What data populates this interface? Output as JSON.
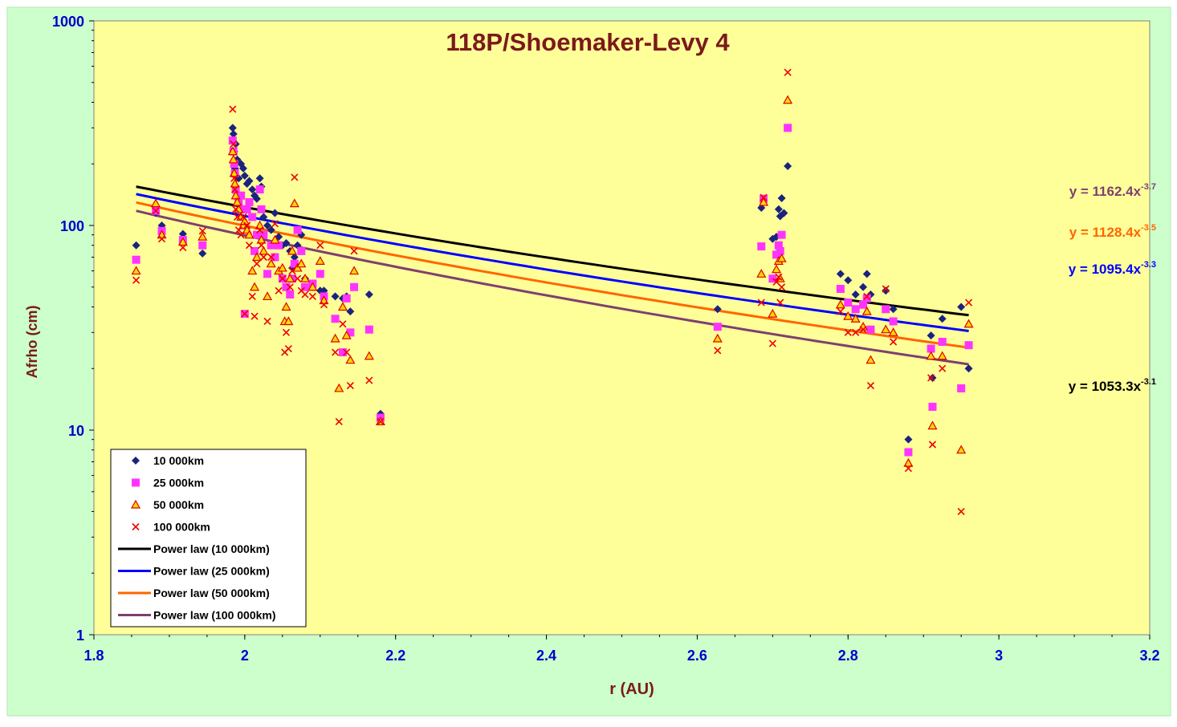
{
  "chart_data": {
    "type": "scatter",
    "title": "118P/Shoemaker-Levy 4",
    "xlabel": "r (AU)",
    "ylabel": "Afrho (cm)",
    "xlim": [
      1.8,
      3.2
    ],
    "ylim": [
      1,
      1000
    ],
    "yscale": "log",
    "x_ticks": [
      "1.8",
      "2",
      "2.2",
      "2.4",
      "2.6",
      "2.8",
      "3",
      "3.2"
    ],
    "y_ticks": [
      "1",
      "10",
      "100",
      "1000"
    ],
    "grid": false,
    "legend_position": "bottom-left",
    "colors": {
      "outer_background": "#ccffcc",
      "plot_background": "#ffff99",
      "title": "#7a1a1a",
      "axis_label": "#7a1a1a",
      "tick_label": "#0000cc",
      "s10k": "#1a237e",
      "s25k": "#ff33ff",
      "s50k_edge": "#dd0000",
      "s50k_fill": "#ffd700",
      "s100k": "#ee0000",
      "fit10k": "#000000",
      "fit25k": "#0000ff",
      "fit50k": "#ff6600",
      "fit100k": "#7f3f6f"
    },
    "series": [
      {
        "name": "10 000km",
        "marker": "diamond",
        "points": [
          [
            1.856,
            80
          ],
          [
            1.882,
            115
          ],
          [
            1.89,
            100
          ],
          [
            1.918,
            91
          ],
          [
            1.944,
            73
          ],
          [
            1.984,
            300
          ],
          [
            1.985,
            280
          ],
          [
            1.986,
            230
          ],
          [
            1.987,
            190
          ],
          [
            1.988,
            250
          ],
          [
            1.99,
            210
          ],
          [
            1.992,
            170
          ],
          [
            1.995,
            200
          ],
          [
            1.998,
            190
          ],
          [
            2.0,
            175
          ],
          [
            2.003,
            160
          ],
          [
            2.006,
            165
          ],
          [
            2.01,
            150
          ],
          [
            2.013,
            140
          ],
          [
            2.016,
            135
          ],
          [
            2.02,
            170
          ],
          [
            2.022,
            155
          ],
          [
            2.025,
            110
          ],
          [
            2.03,
            100
          ],
          [
            2.035,
            95
          ],
          [
            2.04,
            115
          ],
          [
            2.045,
            88
          ],
          [
            2.05,
            80
          ],
          [
            2.055,
            82
          ],
          [
            2.06,
            75
          ],
          [
            2.063,
            62
          ],
          [
            2.066,
            70
          ],
          [
            2.07,
            80
          ],
          [
            2.075,
            90
          ],
          [
            2.08,
            55
          ],
          [
            2.09,
            50
          ],
          [
            2.1,
            48
          ],
          [
            2.105,
            48
          ],
          [
            2.12,
            45
          ],
          [
            2.13,
            44
          ],
          [
            2.135,
            45
          ],
          [
            2.14,
            38
          ],
          [
            2.165,
            46
          ],
          [
            2.18,
            12
          ],
          [
            2.627,
            39
          ],
          [
            2.685,
            122
          ],
          [
            2.688,
            135
          ],
          [
            2.7,
            86
          ],
          [
            2.705,
            88
          ],
          [
            2.708,
            120
          ],
          [
            2.71,
            111
          ],
          [
            2.712,
            136
          ],
          [
            2.715,
            115
          ],
          [
            2.72,
            195
          ],
          [
            2.79,
            58
          ],
          [
            2.8,
            54
          ],
          [
            2.81,
            46
          ],
          [
            2.82,
            50
          ],
          [
            2.825,
            58
          ],
          [
            2.83,
            46
          ],
          [
            2.85,
            48
          ],
          [
            2.86,
            39
          ],
          [
            2.88,
            9
          ],
          [
            2.91,
            29
          ],
          [
            2.912,
            18
          ],
          [
            2.925,
            35
          ],
          [
            2.95,
            40
          ],
          [
            2.96,
            20
          ]
        ]
      },
      {
        "name": "25 000km",
        "marker": "square",
        "points": [
          [
            1.856,
            68
          ],
          [
            1.882,
            118
          ],
          [
            1.89,
            94
          ],
          [
            1.918,
            85
          ],
          [
            1.944,
            80
          ],
          [
            1.984,
            260
          ],
          [
            1.985,
            230
          ],
          [
            1.986,
            200
          ],
          [
            1.987,
            180
          ],
          [
            1.988,
            150
          ],
          [
            1.99,
            140
          ],
          [
            1.992,
            130
          ],
          [
            1.995,
            140
          ],
          [
            1.998,
            120
          ],
          [
            2.0,
            37
          ],
          [
            2.003,
            120
          ],
          [
            2.006,
            130
          ],
          [
            2.01,
            110
          ],
          [
            2.013,
            75
          ],
          [
            2.016,
            90
          ],
          [
            2.02,
            150
          ],
          [
            2.022,
            120
          ],
          [
            2.025,
            90
          ],
          [
            2.03,
            58
          ],
          [
            2.035,
            80
          ],
          [
            2.04,
            70
          ],
          [
            2.045,
            80
          ],
          [
            2.05,
            55
          ],
          [
            2.055,
            50
          ],
          [
            2.06,
            46
          ],
          [
            2.063,
            55
          ],
          [
            2.066,
            65
          ],
          [
            2.07,
            95
          ],
          [
            2.075,
            75
          ],
          [
            2.08,
            50
          ],
          [
            2.09,
            52
          ],
          [
            2.1,
            58
          ],
          [
            2.105,
            45
          ],
          [
            2.12,
            35
          ],
          [
            2.13,
            24
          ],
          [
            2.135,
            44
          ],
          [
            2.14,
            30
          ],
          [
            2.145,
            50
          ],
          [
            2.165,
            31
          ],
          [
            2.18,
            11.5
          ],
          [
            2.627,
            32
          ],
          [
            2.685,
            79
          ],
          [
            2.688,
            135
          ],
          [
            2.7,
            55
          ],
          [
            2.705,
            72
          ],
          [
            2.708,
            80
          ],
          [
            2.71,
            75
          ],
          [
            2.712,
            90
          ],
          [
            2.72,
            300
          ],
          [
            2.79,
            49
          ],
          [
            2.8,
            42
          ],
          [
            2.81,
            39
          ],
          [
            2.82,
            41
          ],
          [
            2.825,
            44
          ],
          [
            2.83,
            31
          ],
          [
            2.85,
            39
          ],
          [
            2.86,
            34
          ],
          [
            2.88,
            7.8
          ],
          [
            2.91,
            25
          ],
          [
            2.912,
            13
          ],
          [
            2.925,
            27
          ],
          [
            2.95,
            16
          ],
          [
            2.96,
            26
          ]
        ]
      },
      {
        "name": "50 000km",
        "marker": "triangle",
        "points": [
          [
            1.856,
            60
          ],
          [
            1.882,
            128
          ],
          [
            1.89,
            90
          ],
          [
            1.918,
            83
          ],
          [
            1.944,
            88
          ],
          [
            1.984,
            230
          ],
          [
            1.985,
            210
          ],
          [
            1.986,
            180
          ],
          [
            1.987,
            160
          ],
          [
            1.988,
            140
          ],
          [
            1.99,
            130
          ],
          [
            1.992,
            120
          ],
          [
            1.995,
            110
          ],
          [
            1.998,
            100
          ],
          [
            2.0,
            105
          ],
          [
            2.003,
            95
          ],
          [
            2.006,
            90
          ],
          [
            2.01,
            60
          ],
          [
            2.013,
            50
          ],
          [
            2.016,
            70
          ],
          [
            2.02,
            100
          ],
          [
            2.022,
            85
          ],
          [
            2.025,
            75
          ],
          [
            2.03,
            45
          ],
          [
            2.035,
            65
          ],
          [
            2.04,
            85
          ],
          [
            2.045,
            60
          ],
          [
            2.05,
            62
          ],
          [
            2.053,
            34
          ],
          [
            2.055,
            40
          ],
          [
            2.058,
            34
          ],
          [
            2.06,
            55
          ],
          [
            2.063,
            75
          ],
          [
            2.066,
            128
          ],
          [
            2.07,
            62
          ],
          [
            2.075,
            65
          ],
          [
            2.08,
            55
          ],
          [
            2.09,
            50
          ],
          [
            2.1,
            67
          ],
          [
            2.105,
            43
          ],
          [
            2.12,
            28
          ],
          [
            2.125,
            16
          ],
          [
            2.13,
            40
          ],
          [
            2.135,
            29
          ],
          [
            2.14,
            22
          ],
          [
            2.145,
            60
          ],
          [
            2.165,
            23
          ],
          [
            2.18,
            11
          ],
          [
            2.627,
            28
          ],
          [
            2.685,
            58
          ],
          [
            2.688,
            130
          ],
          [
            2.7,
            37
          ],
          [
            2.705,
            61
          ],
          [
            2.708,
            67
          ],
          [
            2.71,
            55
          ],
          [
            2.712,
            69
          ],
          [
            2.72,
            410
          ],
          [
            2.79,
            41
          ],
          [
            2.8,
            36
          ],
          [
            2.81,
            35
          ],
          [
            2.82,
            32
          ],
          [
            2.825,
            38
          ],
          [
            2.83,
            22
          ],
          [
            2.85,
            31
          ],
          [
            2.86,
            30
          ],
          [
            2.88,
            6.9
          ],
          [
            2.91,
            23
          ],
          [
            2.912,
            10.5
          ],
          [
            2.925,
            23
          ],
          [
            2.95,
            8
          ],
          [
            2.96,
            33
          ]
        ]
      },
      {
        "name": "100 000km",
        "marker": "x",
        "points": [
          [
            1.856,
            54
          ],
          [
            1.882,
            118
          ],
          [
            1.89,
            86
          ],
          [
            1.918,
            78
          ],
          [
            1.944,
            94
          ],
          [
            1.984,
            370
          ],
          [
            1.985,
            250
          ],
          [
            1.986,
            170
          ],
          [
            1.987,
            150
          ],
          [
            1.988,
            120
          ],
          [
            1.99,
            110
          ],
          [
            1.992,
            95
          ],
          [
            1.995,
            90
          ],
          [
            1.998,
            110
          ],
          [
            2.0,
            37
          ],
          [
            2.003,
            100
          ],
          [
            2.006,
            80
          ],
          [
            2.01,
            45
          ],
          [
            2.013,
            36
          ],
          [
            2.016,
            65
          ],
          [
            2.02,
            95
          ],
          [
            2.022,
            80
          ],
          [
            2.025,
            70
          ],
          [
            2.03,
            34
          ],
          [
            2.035,
            70
          ],
          [
            2.04,
            102
          ],
          [
            2.045,
            48
          ],
          [
            2.05,
            55
          ],
          [
            2.053,
            24
          ],
          [
            2.055,
            30
          ],
          [
            2.058,
            25
          ],
          [
            2.06,
            50
          ],
          [
            2.063,
            60
          ],
          [
            2.066,
            172
          ],
          [
            2.07,
            55
          ],
          [
            2.075,
            48
          ],
          [
            2.08,
            46
          ],
          [
            2.09,
            45
          ],
          [
            2.1,
            80
          ],
          [
            2.105,
            41
          ],
          [
            2.12,
            24
          ],
          [
            2.125,
            11
          ],
          [
            2.13,
            33
          ],
          [
            2.135,
            24
          ],
          [
            2.14,
            16.5
          ],
          [
            2.145,
            75
          ],
          [
            2.165,
            17.5
          ],
          [
            2.18,
            11
          ],
          [
            2.627,
            24.5
          ],
          [
            2.685,
            42
          ],
          [
            2.688,
            137
          ],
          [
            2.7,
            26.5
          ],
          [
            2.705,
            53
          ],
          [
            2.708,
            56
          ],
          [
            2.71,
            42
          ],
          [
            2.712,
            50
          ],
          [
            2.72,
            560
          ],
          [
            2.79,
            38
          ],
          [
            2.8,
            30
          ],
          [
            2.81,
            30
          ],
          [
            2.82,
            31
          ],
          [
            2.825,
            45
          ],
          [
            2.83,
            16.5
          ],
          [
            2.85,
            49
          ],
          [
            2.86,
            27
          ],
          [
            2.88,
            6.5
          ],
          [
            2.91,
            18
          ],
          [
            2.912,
            8.5
          ],
          [
            2.925,
            20
          ],
          [
            2.95,
            4
          ],
          [
            2.96,
            42
          ]
        ]
      }
    ],
    "fits": [
      {
        "name": "Power law (10 000km)",
        "a": 1053.3,
        "b": -3.1,
        "x_range": [
          1.856,
          2.96
        ],
        "equation": "y = 1053.3x",
        "exponent": "-3.1"
      },
      {
        "name": "Power law (25 000km)",
        "a": 1095.4,
        "b": -3.3,
        "x_range": [
          1.856,
          2.96
        ],
        "equation": "y = 1095.4x",
        "exponent": "-3.3"
      },
      {
        "name": "Power law (50 000km)",
        "a": 1128.4,
        "b": -3.5,
        "x_range": [
          1.856,
          2.96
        ],
        "equation": "y = 1128.4x",
        "exponent": "-3.5"
      },
      {
        "name": "Power law (100 000km)",
        "a": 1162.4,
        "b": -3.7,
        "x_range": [
          1.856,
          2.96
        ],
        "equation": "y = 1162.4x",
        "exponent": "-3.7"
      }
    ],
    "equation_labels_order": [
      "100 000km",
      "50 000km",
      "25 000km",
      "10 000km"
    ]
  }
}
